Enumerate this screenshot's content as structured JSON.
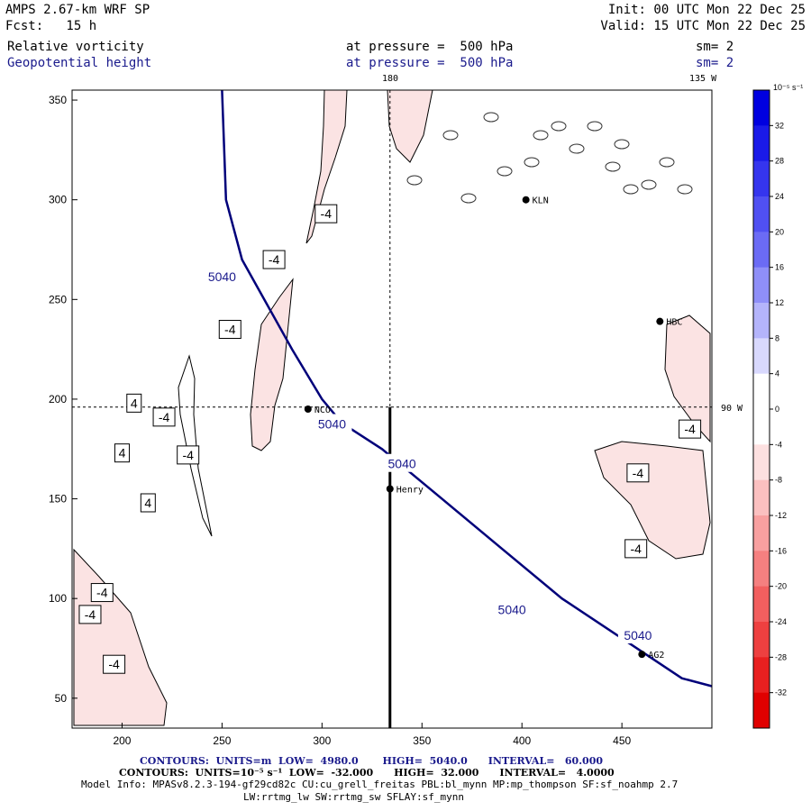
{
  "header": {
    "model": "AMPS 2.67-km WRF SP",
    "init": "Init: 00 UTC Mon 22 Dec 25",
    "fcst": "Fcst:   15 h",
    "valid": "Valid: 15 UTC Mon 22 Dec 25",
    "field1": "Relative vorticity",
    "field1_level": "at pressure =  500 hPa",
    "field1_sm": "sm= 2",
    "field2": "Geopotential height",
    "field2_level": "at pressure =  500 hPa",
    "field2_sm": "sm= 2"
  },
  "map_labels": {
    "top_180": "180",
    "top_135w": "135 W",
    "right_90w": "90 W"
  },
  "stations": [
    {
      "name": "KLN",
      "x": 402,
      "y": 300
    },
    {
      "name": "HBC",
      "x": 469,
      "y": 239
    },
    {
      "name": "NCO",
      "x": 293,
      "y": 195
    },
    {
      "name": "Henry",
      "x": 334,
      "y": 155
    },
    {
      "name": "AG2",
      "x": 460,
      "y": 72
    }
  ],
  "footer": {
    "line1": "CONTOURS:  UNITS=m  LOW=  4980.0       HIGH=  5040.0      INTERVAL=   60.000",
    "line2": "CONTOURS:  UNITS=10⁻⁵ s⁻¹  LOW=  -32.000      HIGH=  32.000      INTERVAL=   4.0000",
    "line3": "Model Info: MPASv8.2.3-194-gf29cd82c CU:cu_grell_freitas PBL:bl_mynn MP:mp_thompson SF:sf_noahmp 2.7",
    "line4": "LW:rrtmg_lw SW:rrtmg_sw SFLAY:sf_mynn"
  },
  "colorbar": {
    "unit_label": "10⁻⁵ s⁻¹",
    "levels": [
      36,
      32,
      28,
      24,
      20,
      16,
      12,
      8,
      4,
      0,
      -4,
      -8,
      -12,
      -16,
      -20,
      -24,
      -28,
      -32,
      -36
    ],
    "tick_labels": [
      "32",
      "28",
      "24",
      "20",
      "16",
      "12",
      "8",
      "4",
      "0",
      "-4",
      "-8",
      "-12",
      "-16",
      "-20",
      "-24",
      "-28",
      "-32"
    ],
    "colors": [
      "#0000e0",
      "#1a1ae8",
      "#3535ee",
      "#5050f2",
      "#6b6bf5",
      "#8f8ff8",
      "#b4b4fb",
      "#d8d8fd",
      "#ffffff",
      "#ffffff",
      "#fde0e0",
      "#fbc0c0",
      "#f8a0a0",
      "#f58080",
      "#f25f5f",
      "#ee4040",
      "#e82020",
      "#e00000"
    ]
  },
  "chart_data": {
    "type": "contour",
    "xlim": [
      175,
      495
    ],
    "ylim": [
      35,
      355
    ],
    "x_ticks": [
      200,
      250,
      300,
      350,
      400,
      450
    ],
    "y_ticks": [
      50,
      100,
      150,
      200,
      250,
      300,
      350
    ],
    "height_contour": {
      "value_label": "5040",
      "points": [
        [
          250,
          355
        ],
        [
          252,
          300
        ],
        [
          260,
          270
        ],
        [
          285,
          225
        ],
        [
          300,
          200
        ],
        [
          310,
          188
        ],
        [
          330,
          175
        ],
        [
          360,
          150
        ],
        [
          390,
          125
        ],
        [
          420,
          100
        ],
        [
          450,
          80
        ],
        [
          480,
          60
        ],
        [
          495,
          56
        ]
      ],
      "label_positions": [
        [
          250,
          262
        ],
        [
          305,
          188
        ],
        [
          340,
          168
        ],
        [
          395,
          95
        ],
        [
          458,
          82
        ]
      ]
    },
    "vorticity_labels": [
      {
        "text": "-4",
        "x": 302,
        "y": 293
      },
      {
        "text": "-4",
        "x": 276,
        "y": 270
      },
      {
        "text": "-4",
        "x": 254,
        "y": 235
      },
      {
        "text": "-4",
        "x": 221,
        "y": 191
      },
      {
        "text": "-4",
        "x": 233,
        "y": 172
      },
      {
        "text": "4",
        "x": 206,
        "y": 198
      },
      {
        "text": "4",
        "x": 200,
        "y": 173
      },
      {
        "text": "4",
        "x": 213,
        "y": 148
      },
      {
        "text": "-4",
        "x": 190,
        "y": 103
      },
      {
        "text": "-4",
        "x": 184,
        "y": 92
      },
      {
        "text": "-4",
        "x": 196,
        "y": 67
      },
      {
        "text": "-4",
        "x": 484,
        "y": 185
      },
      {
        "text": "-4",
        "x": 458,
        "y": 163
      },
      {
        "text": "-4",
        "x": 457,
        "y": 125
      }
    ],
    "vertical_line_x": 334,
    "horizontal_line_y": 196,
    "trajectory": {
      "x": 334,
      "y_from": 196,
      "y_to": 35
    }
  }
}
